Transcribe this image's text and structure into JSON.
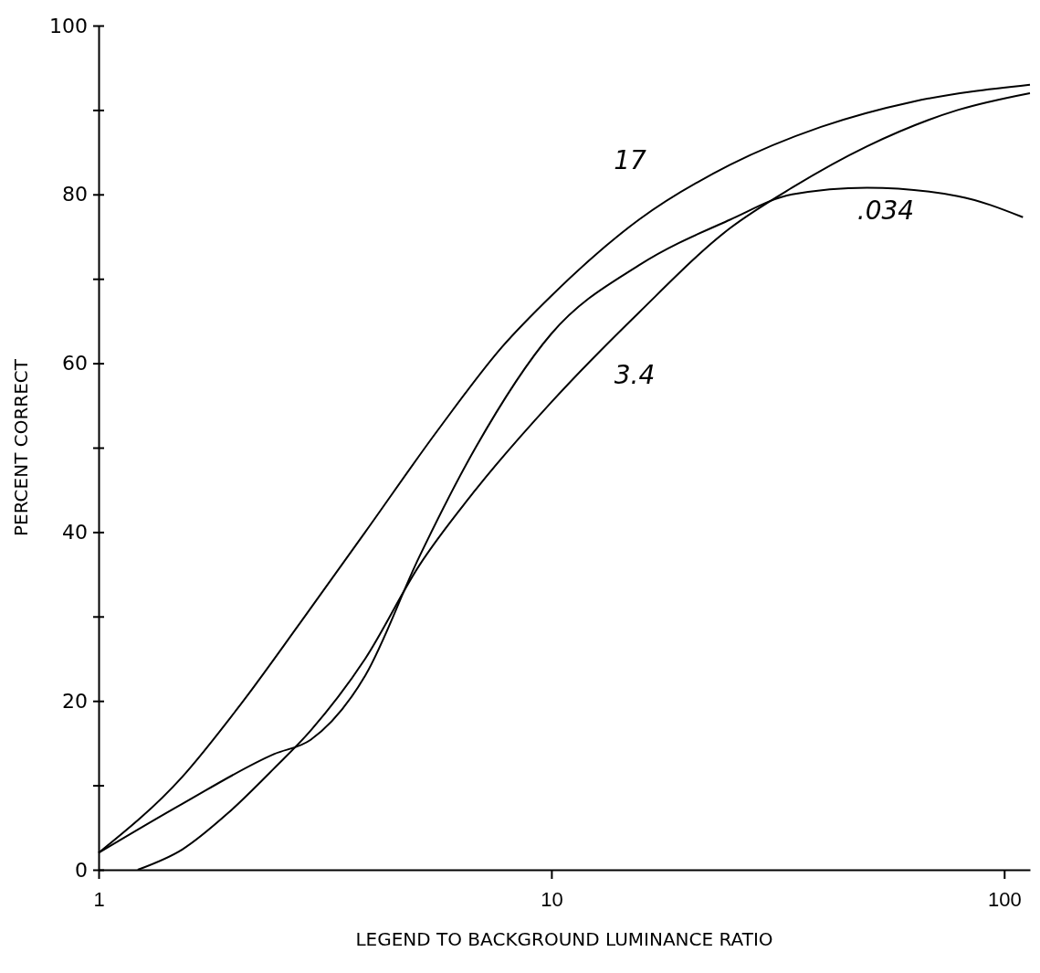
{
  "chart_data": {
    "type": "line",
    "xlabel": "LEGEND TO BACKGROUND LUMINANCE RATIO",
    "ylabel": "PERCENT CORRECT",
    "log": "x",
    "grid": false,
    "marker": "none",
    "line_style": "solid",
    "xlim": [
      1,
      114
    ],
    "ylim": [
      0,
      100
    ],
    "xticks": [
      1,
      10,
      100
    ],
    "yticks": [
      0,
      {
        "value": 10,
        "label": null
      },
      20,
      {
        "value": 30,
        "label": null
      },
      40,
      {
        "value": 50,
        "label": null
      },
      60,
      {
        "value": 70,
        "label": null
      },
      80,
      {
        "value": 90,
        "label": null
      },
      100
    ],
    "series": [
      {
        "name": "17",
        "color": "#000000",
        "x": [
          1,
          1.53,
          2.02,
          2.8,
          3.88,
          5.6,
          7.8,
          10,
          15.6,
          24.8,
          39.4,
          63,
          114
        ],
        "values": [
          2,
          11,
          19,
          29.4,
          40,
          52,
          62,
          68,
          77,
          83.5,
          88,
          91,
          93
        ]
      },
      {
        "name": ".034",
        "color": "#000000",
        "x": [
          1,
          1.53,
          2.44,
          2.94,
          3.88,
          5.1,
          6.8,
          10,
          15.6,
          24.8,
          34,
          49.8,
          79,
          110
        ],
        "values": [
          2,
          7.8,
          13.7,
          15.4,
          23,
          37,
          50,
          63.5,
          71.6,
          77,
          80,
          80.8,
          79.8,
          77.3
        ]
      },
      {
        "name": "3.4",
        "color": "#000000",
        "x": [
          1.22,
          1.53,
          1.93,
          2.44,
          2.94,
          3.88,
          5.1,
          6.8,
          10,
          15.6,
          24.8,
          34,
          49.8,
          79,
          114
        ],
        "values": [
          0,
          2.4,
          6.7,
          12,
          16.5,
          25,
          36,
          45,
          55.4,
          66,
          76,
          80.8,
          85.7,
          90,
          92
        ]
      }
    ]
  }
}
